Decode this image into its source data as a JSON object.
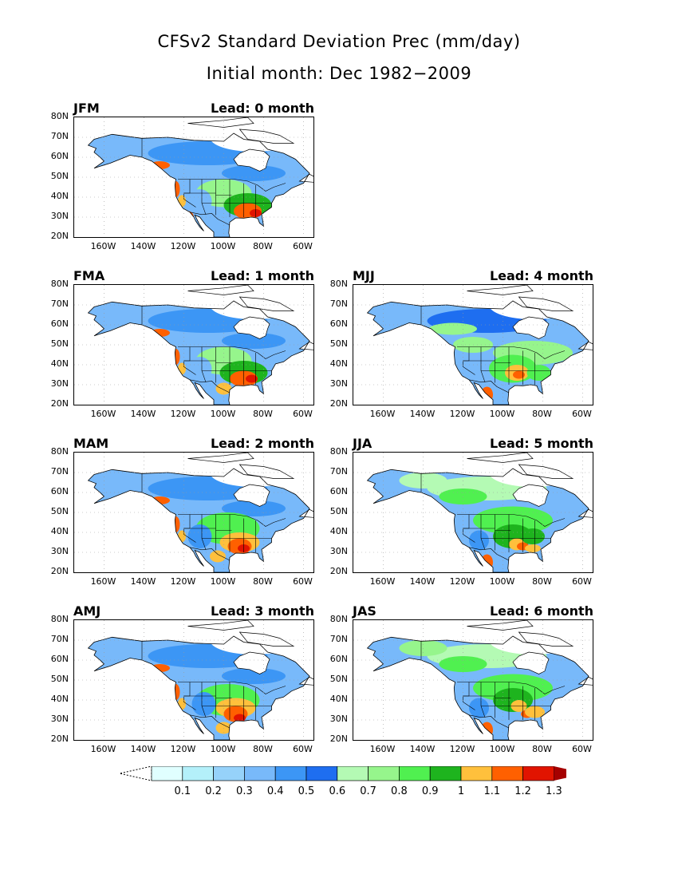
{
  "title": "CFSv2 Standard Deviation Prec (mm/day)",
  "subtitle": "Initial month: Dec 1982−2009",
  "panels": [
    {
      "season": "JFM",
      "lead": "Lead: 0 month"
    },
    {
      "season": "FMA",
      "lead": "Lead: 1 month"
    },
    {
      "season": "MJJ",
      "lead": "Lead: 4 month"
    },
    {
      "season": "MAM",
      "lead": "Lead: 2 month"
    },
    {
      "season": "JJA",
      "lead": "Lead: 5 month"
    },
    {
      "season": "AMJ",
      "lead": "Lead: 3 month"
    },
    {
      "season": "JAS",
      "lead": "Lead: 6 month"
    }
  ],
  "lat_ticks": [
    "80N",
    "70N",
    "60N",
    "50N",
    "40N",
    "30N",
    "20N"
  ],
  "lon_ticks": [
    "160W",
    "140W",
    "120W",
    "100W",
    "80W",
    "60W"
  ],
  "colorbar": {
    "labels": [
      "0.1",
      "0.2",
      "0.3",
      "0.4",
      "0.5",
      "0.6",
      "0.7",
      "0.8",
      "0.9",
      "1",
      "1.1",
      "1.2",
      "1.3"
    ],
    "colors": [
      "#e0ffff",
      "#b4f0fa",
      "#96d2fa",
      "#78b9fa",
      "#3c96f5",
      "#1e6ef0",
      "#b4fab4",
      "#96f58c",
      "#50f050",
      "#1eb41e",
      "#ffc03c",
      "#ff6000",
      "#e11400",
      "#a50000"
    ]
  }
}
